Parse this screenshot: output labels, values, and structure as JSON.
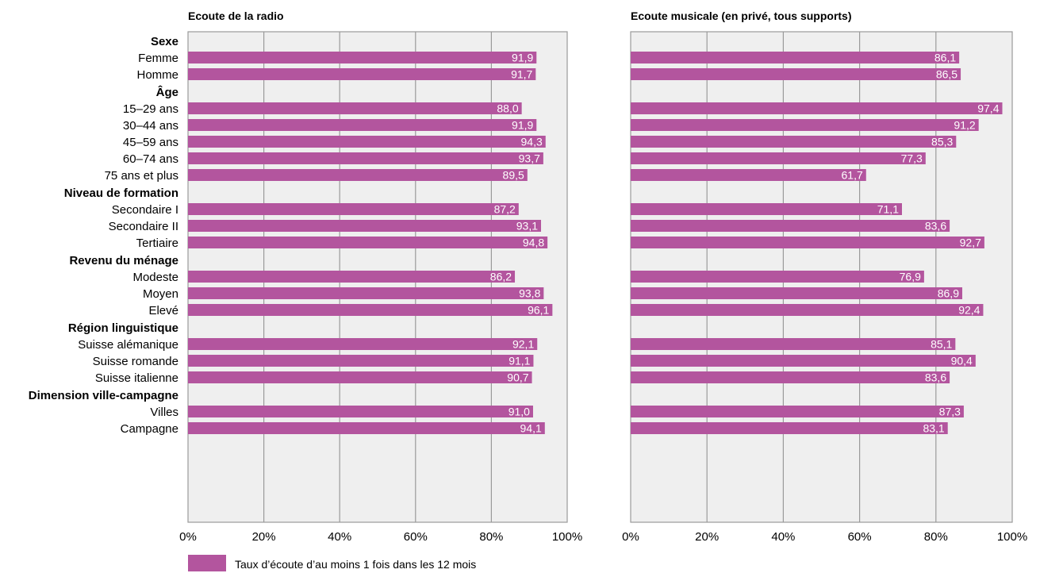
{
  "colors": {
    "bar": "#b3559e",
    "plot_bg": "#efefef",
    "grid": "#9a9a9a",
    "bar_text": "#ffffff"
  },
  "chart_data": [
    {
      "type": "bar",
      "orientation": "horizontal",
      "title": "Ecoute de la radio",
      "xlim": [
        0,
        100
      ],
      "ticks": [
        "0%",
        "20%",
        "40%",
        "60%",
        "80%",
        "100%"
      ],
      "grid": true,
      "groups": [
        {
          "label": "Sexe",
          "rows": [
            {
              "label": "Femme",
              "value": 91.9,
              "text": "91,9"
            },
            {
              "label": "Homme",
              "value": 91.7,
              "text": "91,7"
            }
          ]
        },
        {
          "label": "Âge",
          "rows": [
            {
              "label": "15–29 ans",
              "value": 88.0,
              "text": "88,0"
            },
            {
              "label": "30–44 ans",
              "value": 91.9,
              "text": "91,9"
            },
            {
              "label": "45–59 ans",
              "value": 94.3,
              "text": "94,3"
            },
            {
              "label": "60–74 ans",
              "value": 93.7,
              "text": "93,7"
            },
            {
              "label": "75 ans et plus",
              "value": 89.5,
              "text": "89,5"
            }
          ]
        },
        {
          "label": "Niveau de formation",
          "rows": [
            {
              "label": "Secondaire I",
              "value": 87.2,
              "text": "87,2"
            },
            {
              "label": "Secondaire II",
              "value": 93.1,
              "text": "93,1"
            },
            {
              "label": "Tertiaire",
              "value": 94.8,
              "text": "94,8"
            }
          ]
        },
        {
          "label": "Revenu du ménage",
          "rows": [
            {
              "label": "Modeste",
              "value": 86.2,
              "text": "86,2"
            },
            {
              "label": "Moyen",
              "value": 93.8,
              "text": "93,8"
            },
            {
              "label": "Elevé",
              "value": 96.1,
              "text": "96,1"
            }
          ]
        },
        {
          "label": "Région linguistique",
          "rows": [
            {
              "label": "Suisse alémanique",
              "value": 92.1,
              "text": "92,1"
            },
            {
              "label": "Suisse romande",
              "value": 91.1,
              "text": "91,1"
            },
            {
              "label": "Suisse italienne",
              "value": 90.7,
              "text": "90,7"
            }
          ]
        },
        {
          "label": "Dimension ville-campagne",
          "rows": [
            {
              "label": "Villes",
              "value": 91.0,
              "text": "91,0"
            },
            {
              "label": "Campagne",
              "value": 94.1,
              "text": "94,1"
            }
          ]
        }
      ]
    },
    {
      "type": "bar",
      "orientation": "horizontal",
      "title": "Ecoute musicale (en privé, tous supports)",
      "xlim": [
        0,
        100
      ],
      "ticks": [
        "0%",
        "20%",
        "40%",
        "60%",
        "80%",
        "100%"
      ],
      "grid": true,
      "groups": [
        {
          "rows": [
            {
              "value": 86.1,
              "text": "86,1"
            },
            {
              "value": 86.5,
              "text": "86,5"
            }
          ]
        },
        {
          "rows": [
            {
              "value": 97.4,
              "text": "97,4"
            },
            {
              "value": 91.2,
              "text": "91,2"
            },
            {
              "value": 85.3,
              "text": "85,3"
            },
            {
              "value": 77.3,
              "text": "77,3"
            },
            {
              "value": 61.7,
              "text": "61,7"
            }
          ]
        },
        {
          "rows": [
            {
              "value": 71.1,
              "text": "71,1"
            },
            {
              "value": 83.6,
              "text": "83,6"
            },
            {
              "value": 92.7,
              "text": "92,7"
            }
          ]
        },
        {
          "rows": [
            {
              "value": 76.9,
              "text": "76,9"
            },
            {
              "value": 86.9,
              "text": "86,9"
            },
            {
              "value": 92.4,
              "text": "92,4"
            }
          ]
        },
        {
          "rows": [
            {
              "value": 85.1,
              "text": "85,1"
            },
            {
              "value": 90.4,
              "text": "90,4"
            },
            {
              "value": 83.6,
              "text": "83,6"
            }
          ]
        },
        {
          "rows": [
            {
              "value": 87.3,
              "text": "87,3"
            },
            {
              "value": 83.1,
              "text": "83,1"
            }
          ]
        }
      ]
    }
  ],
  "legend": {
    "position": "bottom-left",
    "label": "Taux d’écoute d’au moins 1 fois dans les 12 mois"
  }
}
